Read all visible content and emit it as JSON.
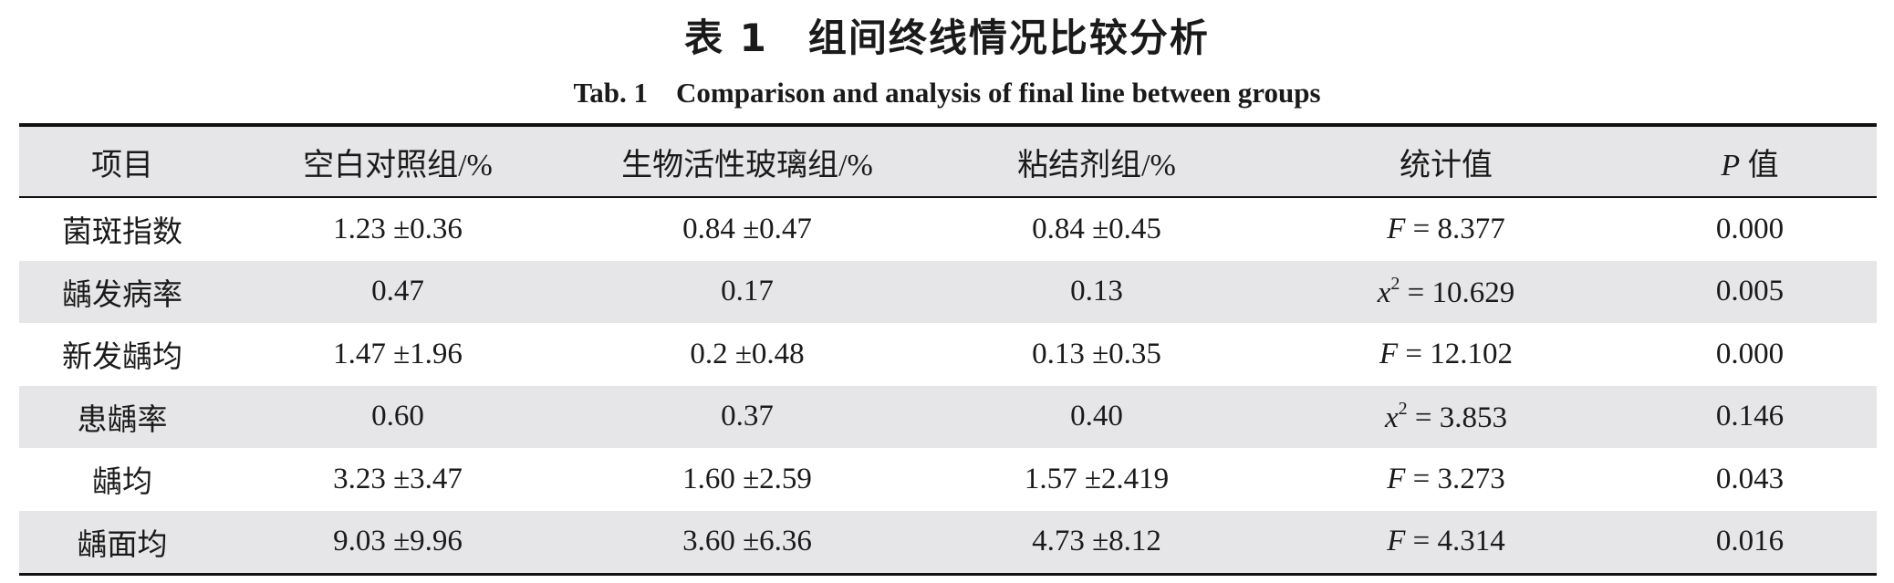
{
  "title": "表 1　组间终线情况比较分析",
  "subtitle": "Tab. 1　Comparison and analysis of final line between groups",
  "table": {
    "header": [
      "项目",
      "空白对照组/%",
      "生物活性玻璃组/%",
      "粘结剂组/%",
      "统计值",
      {
        "symbol": "P",
        "text": " 值"
      }
    ],
    "rows": [
      [
        "菌斑指数",
        "1.23 ±0.36",
        "0.84 ±0.47",
        "0.84 ±0.45",
        {
          "symbol": "F",
          "text": " = 8.377"
        },
        "0.000"
      ],
      [
        "龋发病率",
        "0.47",
        "0.17",
        "0.13",
        {
          "symbol": "x",
          "sup": "2",
          "text": " = 10.629"
        },
        "0.005"
      ],
      [
        "新发龋均",
        "1.47 ±1.96",
        "0.2 ±0.48",
        "0.13 ±0.35",
        {
          "symbol": "F",
          "text": " = 12.102"
        },
        "0.000"
      ],
      [
        "患龋率",
        "0.60",
        "0.37",
        "0.40",
        {
          "symbol": "x",
          "sup": "2",
          "text": " = 3.853"
        },
        "0.146"
      ],
      [
        "龋均",
        "3.23 ±3.47",
        "1.60 ±2.59",
        "1.57 ±2.419",
        {
          "symbol": "F",
          "text": " = 3.273"
        },
        "0.043"
      ],
      [
        "龋面均",
        "9.03 ±9.96",
        "3.60 ±6.36",
        "4.73 ±8.12",
        {
          "symbol": "F",
          "text": " = 4.314"
        },
        "0.016"
      ]
    ]
  }
}
